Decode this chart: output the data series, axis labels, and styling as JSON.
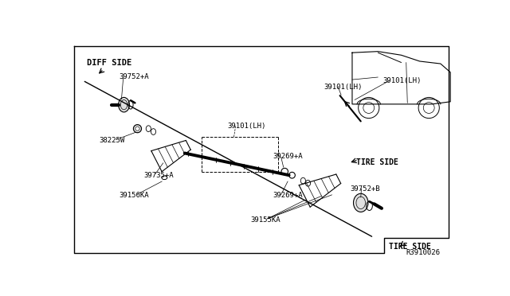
{
  "bg_color": "#ffffff",
  "line_color": "#000000",
  "text_color": "#000000",
  "part_number_ref": "R3910026",
  "labels": {
    "DIFF_SIDE": "DIFF SIDE",
    "TIRE_SIDE_1": "TIRE SIDE",
    "TIRE_SIDE_2": "TIRE SIDE",
    "part_39752A": "39752+A",
    "part_38225W": "38225W",
    "part_39735A": "39735+A",
    "part_39156KA": "39156KA",
    "part_39101LH_1": "39101(LH)",
    "part_39101LH_2": "39101(LH)",
    "part_39269A_1": "39269+A",
    "part_39269A_2": "39269+A",
    "part_39155KA": "39155KA",
    "part_39752B": "39752+B"
  },
  "font_size": 7,
  "font_family": "monospace"
}
